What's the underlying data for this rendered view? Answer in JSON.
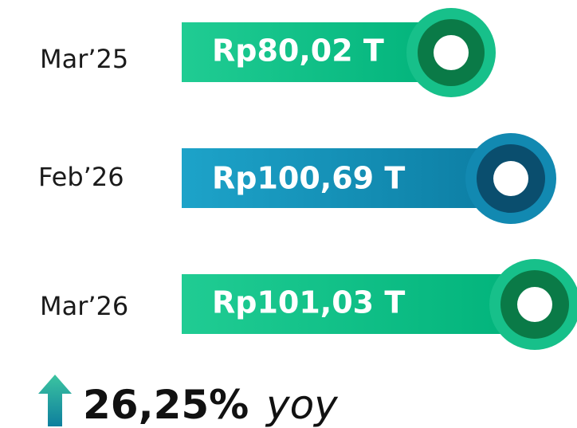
{
  "rows": [
    {
      "label": "Mar’25",
      "value": "Rp80,02 T"
    },
    {
      "label": "Feb’26",
      "value": "Rp100,69 T"
    },
    {
      "label": "Mar’26",
      "value": "Rp101,03 T"
    }
  ],
  "growth": {
    "value": "26,25%",
    "unit": "yoy"
  }
}
